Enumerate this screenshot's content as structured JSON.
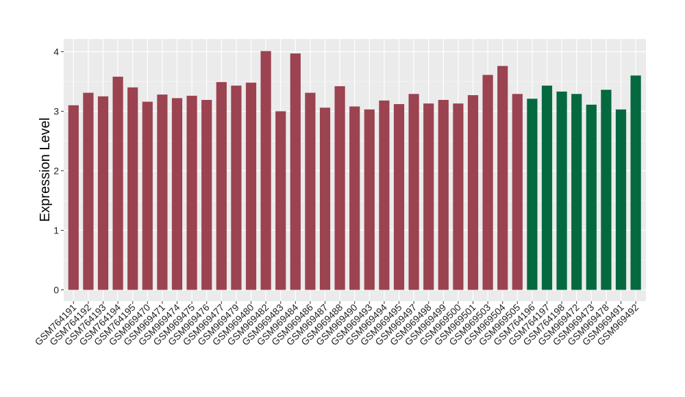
{
  "chart_data": {
    "type": "bar",
    "title": "",
    "xlabel": "",
    "ylabel": "Expression Level",
    "ylim": [
      0,
      4
    ],
    "grid": true,
    "panel_background": "#EBEBEB",
    "grid_color": "#FFFFFF",
    "colors": {
      "group_a": "#9B4350",
      "group_b": "#05693F"
    },
    "categories": [
      "GSM764191",
      "GSM764192",
      "GSM764193",
      "GSM764194",
      "GSM764195",
      "GSM969470",
      "GSM969471",
      "GSM969474",
      "GSM969475",
      "GSM969476",
      "GSM969477",
      "GSM969479",
      "GSM969480",
      "GSM969482",
      "GSM969483",
      "GSM969484",
      "GSM969486",
      "GSM969487",
      "GSM969488",
      "GSM969490",
      "GSM969493",
      "GSM969494",
      "GSM969495",
      "GSM969497",
      "GSM969498",
      "GSM969499",
      "GSM969500",
      "GSM969501",
      "GSM969503",
      "GSM969504",
      "GSM969505",
      "GSM764196",
      "GSM764197",
      "GSM764198",
      "GSM969472",
      "GSM969473",
      "GSM969478",
      "GSM969491",
      "GSM969492"
    ],
    "values": [
      3.1,
      3.31,
      3.25,
      3.58,
      3.4,
      3.16,
      3.28,
      3.22,
      3.26,
      3.19,
      3.49,
      3.43,
      3.48,
      4.01,
      3.0,
      3.97,
      3.31,
      3.06,
      3.42,
      3.08,
      3.03,
      3.18,
      3.12,
      3.29,
      3.13,
      3.19,
      3.13,
      3.27,
      3.61,
      3.76,
      3.29,
      3.21,
      3.43,
      3.33,
      3.29,
      3.11,
      3.36,
      3.03,
      3.6
    ],
    "groups": [
      "a",
      "a",
      "a",
      "a",
      "a",
      "a",
      "a",
      "a",
      "a",
      "a",
      "a",
      "a",
      "a",
      "a",
      "a",
      "a",
      "a",
      "a",
      "a",
      "a",
      "a",
      "a",
      "a",
      "a",
      "a",
      "a",
      "a",
      "a",
      "a",
      "a",
      "a",
      "b",
      "b",
      "b",
      "b",
      "b",
      "b",
      "b",
      "b"
    ],
    "yticks": [
      0,
      1,
      2,
      3,
      4
    ]
  }
}
